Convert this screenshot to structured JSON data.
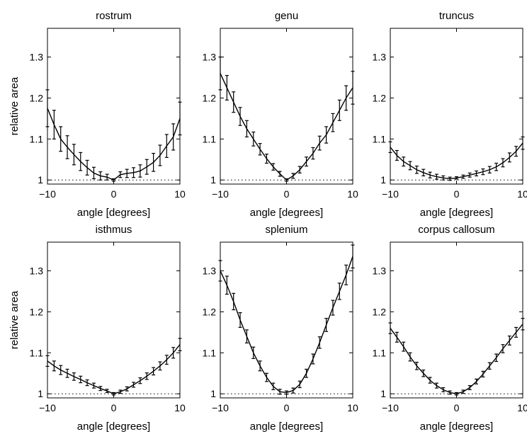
{
  "chart_data": [
    {
      "type": "line",
      "title": "rostrum",
      "xlabel": "angle [degrees]",
      "ylabel": "relative area",
      "xlim": [
        -10,
        10
      ],
      "ylim": [
        0.99,
        1.37
      ],
      "xticks": [
        -10,
        0,
        10
      ],
      "yticks": [
        1,
        1.1,
        1.2,
        1.3
      ],
      "reference_line": 1,
      "grid": false,
      "x": [
        -10,
        -9,
        -8,
        -7,
        -6,
        -5,
        -4,
        -3,
        -2,
        -1,
        0,
        1,
        2,
        3,
        4,
        5,
        6,
        7,
        8,
        9,
        10
      ],
      "series": [
        {
          "values": [
            1.175,
            1.135,
            1.1,
            1.08,
            1.062,
            1.045,
            1.03,
            1.017,
            1.01,
            1.007,
            1.0,
            1.013,
            1.016,
            1.018,
            1.022,
            1.032,
            1.043,
            1.06,
            1.083,
            1.105,
            1.15
          ],
          "error": [
            0.045,
            0.035,
            0.03,
            0.028,
            0.025,
            0.022,
            0.018,
            0.014,
            0.01,
            0.007,
            0.003,
            0.007,
            0.01,
            0.012,
            0.015,
            0.018,
            0.022,
            0.025,
            0.028,
            0.032,
            0.04
          ]
        }
      ]
    },
    {
      "type": "line",
      "title": "genu",
      "xlabel": "angle [degrees]",
      "ylabel": "",
      "xlim": [
        -10,
        10
      ],
      "ylim": [
        0.99,
        1.37
      ],
      "xticks": [
        -10,
        0,
        10
      ],
      "yticks": [
        1,
        1.1,
        1.2,
        1.3
      ],
      "reference_line": 1,
      "grid": false,
      "x": [
        -10,
        -9,
        -8,
        -7,
        -6,
        -5,
        -4,
        -3,
        -2,
        -1,
        0,
        1,
        2,
        3,
        4,
        5,
        6,
        7,
        8,
        9,
        10
      ],
      "series": [
        {
          "values": [
            1.26,
            1.225,
            1.19,
            1.155,
            1.125,
            1.1,
            1.075,
            1.052,
            1.032,
            1.015,
            1.0,
            1.01,
            1.025,
            1.045,
            1.065,
            1.09,
            1.11,
            1.14,
            1.17,
            1.2,
            1.225
          ],
          "error": [
            0.04,
            0.03,
            0.025,
            0.022,
            0.02,
            0.017,
            0.014,
            0.011,
            0.008,
            0.006,
            0.003,
            0.006,
            0.008,
            0.011,
            0.014,
            0.017,
            0.02,
            0.022,
            0.025,
            0.03,
            0.04
          ]
        }
      ]
    },
    {
      "type": "line",
      "title": "truncus",
      "xlabel": "angle [degrees]",
      "ylabel": "",
      "xlim": [
        -10,
        10
      ],
      "ylim": [
        0.99,
        1.37
      ],
      "xticks": [
        -10,
        0,
        10
      ],
      "yticks": [
        1,
        1.1,
        1.2,
        1.3
      ],
      "reference_line": 1,
      "grid": false,
      "x": [
        -10,
        -9,
        -8,
        -7,
        -6,
        -5,
        -4,
        -3,
        -2,
        -1,
        0,
        1,
        2,
        3,
        4,
        5,
        6,
        7,
        8,
        9,
        10
      ],
      "series": [
        {
          "values": [
            1.08,
            1.06,
            1.045,
            1.035,
            1.025,
            1.018,
            1.012,
            1.008,
            1.005,
            1.003,
            1.005,
            1.008,
            1.012,
            1.016,
            1.02,
            1.025,
            1.032,
            1.042,
            1.055,
            1.07,
            1.09
          ],
          "error": [
            0.013,
            0.012,
            0.011,
            0.01,
            0.009,
            0.008,
            0.007,
            0.006,
            0.005,
            0.004,
            0.003,
            0.004,
            0.005,
            0.006,
            0.007,
            0.008,
            0.009,
            0.01,
            0.011,
            0.012,
            0.015
          ]
        }
      ]
    },
    {
      "type": "line",
      "title": "isthmus",
      "xlabel": "angle [degrees]",
      "ylabel": "relative area",
      "xlim": [
        -10,
        10
      ],
      "ylim": [
        0.99,
        1.37
      ],
      "xticks": [
        -10,
        0,
        10
      ],
      "yticks": [
        1,
        1.1,
        1.2,
        1.3
      ],
      "reference_line": 1,
      "grid": false,
      "x": [
        -10,
        -9,
        -8,
        -7,
        -6,
        -5,
        -4,
        -3,
        -2,
        -1,
        0,
        1,
        2,
        3,
        4,
        5,
        6,
        7,
        8,
        9,
        10
      ],
      "series": [
        {
          "values": [
            1.08,
            1.068,
            1.058,
            1.05,
            1.042,
            1.035,
            1.027,
            1.02,
            1.013,
            1.007,
            1.0,
            1.005,
            1.012,
            1.022,
            1.032,
            1.043,
            1.055,
            1.068,
            1.083,
            1.1,
            1.12
          ],
          "error": [
            0.013,
            0.012,
            0.011,
            0.01,
            0.009,
            0.008,
            0.007,
            0.006,
            0.005,
            0.004,
            0.003,
            0.004,
            0.005,
            0.006,
            0.007,
            0.008,
            0.009,
            0.01,
            0.011,
            0.013,
            0.015
          ]
        }
      ]
    },
    {
      "type": "line",
      "title": "splenium",
      "xlabel": "angle [degrees]",
      "ylabel": "",
      "xlim": [
        -10,
        10
      ],
      "ylim": [
        0.99,
        1.37
      ],
      "xticks": [
        -10,
        0,
        10
      ],
      "yticks": [
        1,
        1.1,
        1.2,
        1.3
      ],
      "reference_line": 1,
      "grid": false,
      "x": [
        -10,
        -9,
        -8,
        -7,
        -6,
        -5,
        -4,
        -3,
        -2,
        -1,
        0,
        1,
        2,
        3,
        4,
        5,
        6,
        7,
        8,
        9,
        10
      ],
      "series": [
        {
          "values": [
            1.3,
            1.265,
            1.225,
            1.18,
            1.14,
            1.1,
            1.068,
            1.04,
            1.018,
            1.005,
            1.003,
            1.008,
            1.023,
            1.05,
            1.085,
            1.125,
            1.168,
            1.21,
            1.25,
            1.29,
            1.335
          ],
          "error": [
            0.025,
            0.022,
            0.02,
            0.018,
            0.016,
            0.014,
            0.012,
            0.01,
            0.008,
            0.006,
            0.004,
            0.006,
            0.008,
            0.01,
            0.012,
            0.014,
            0.016,
            0.018,
            0.02,
            0.024,
            0.028
          ]
        }
      ]
    },
    {
      "type": "line",
      "title": "corpus callosum",
      "xlabel": "angle [degrees]",
      "ylabel": "",
      "xlim": [
        -10,
        10
      ],
      "ylim": [
        0.99,
        1.37
      ],
      "xticks": [
        -10,
        0,
        10
      ],
      "yticks": [
        1,
        1.1,
        1.2,
        1.3
      ],
      "reference_line": 1,
      "grid": false,
      "x": [
        -10,
        -9,
        -8,
        -7,
        -6,
        -5,
        -4,
        -3,
        -2,
        -1,
        0,
        1,
        2,
        3,
        4,
        5,
        6,
        7,
        8,
        9,
        10
      ],
      "series": [
        {
          "values": [
            1.16,
            1.138,
            1.115,
            1.09,
            1.068,
            1.05,
            1.033,
            1.02,
            1.01,
            1.003,
            1.0,
            1.005,
            1.015,
            1.03,
            1.048,
            1.068,
            1.088,
            1.11,
            1.13,
            1.15,
            1.17
          ],
          "error": [
            0.013,
            0.012,
            0.011,
            0.01,
            0.009,
            0.008,
            0.007,
            0.006,
            0.005,
            0.004,
            0.003,
            0.004,
            0.005,
            0.006,
            0.007,
            0.008,
            0.009,
            0.01,
            0.011,
            0.012,
            0.014
          ]
        }
      ]
    }
  ]
}
